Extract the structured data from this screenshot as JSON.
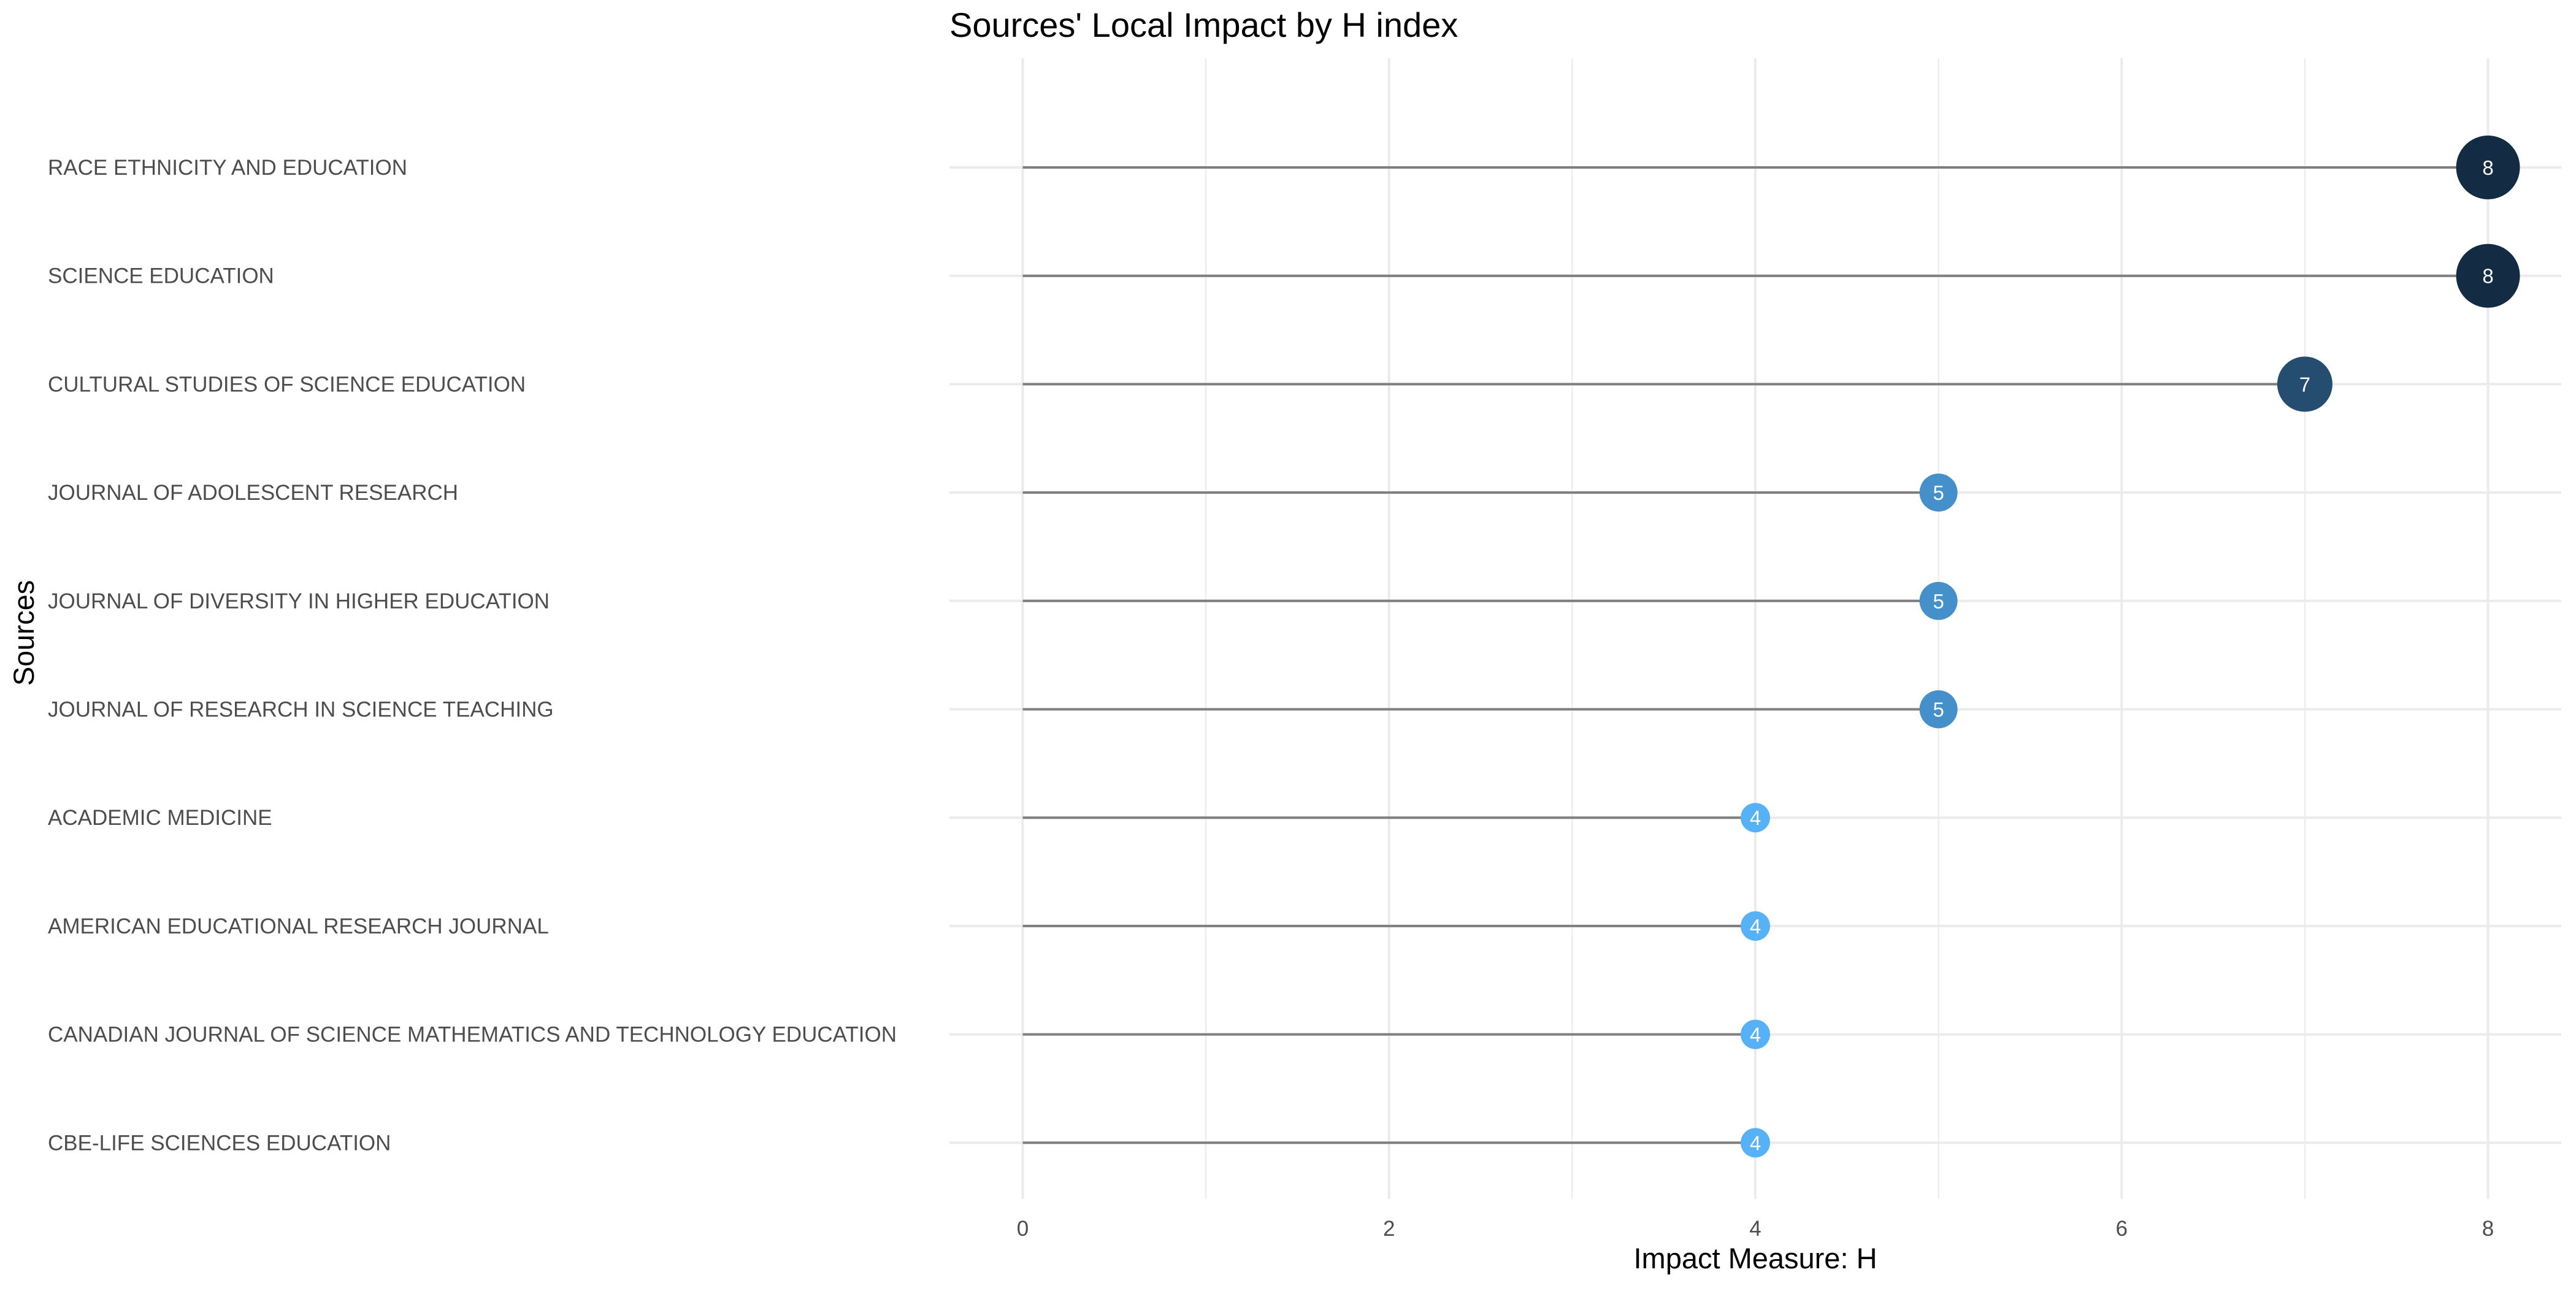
{
  "chart_data": {
    "type": "lollipop",
    "title": "Sources' Local Impact by H index",
    "xlabel": "Impact Measure: H",
    "ylabel": "Sources",
    "xlim": [
      -0.4,
      8.4
    ],
    "xticks": [
      0,
      2,
      4,
      6,
      8
    ],
    "grid": true,
    "legend": "none",
    "categories": [
      "RACE ETHNICITY AND EDUCATION",
      "SCIENCE EDUCATION",
      "CULTURAL STUDIES OF SCIENCE EDUCATION",
      "JOURNAL OF ADOLESCENT RESEARCH",
      "JOURNAL OF DIVERSITY IN HIGHER EDUCATION",
      "JOURNAL OF RESEARCH IN SCIENCE TEACHING",
      "ACADEMIC MEDICINE",
      "AMERICAN EDUCATIONAL RESEARCH JOURNAL",
      "CANADIAN JOURNAL OF SCIENCE MATHEMATICS AND TECHNOLOGY EDUCATION",
      "CBE-LIFE SCIENCES EDUCATION"
    ],
    "values": [
      8,
      8,
      7,
      5,
      5,
      5,
      4,
      4,
      4,
      4
    ],
    "colors": {
      "low": "#56b1f7",
      "high": "#132b43",
      "segment": "#7f7f7f",
      "grid": "#ebebeb",
      "label": "#ffffff"
    }
  }
}
